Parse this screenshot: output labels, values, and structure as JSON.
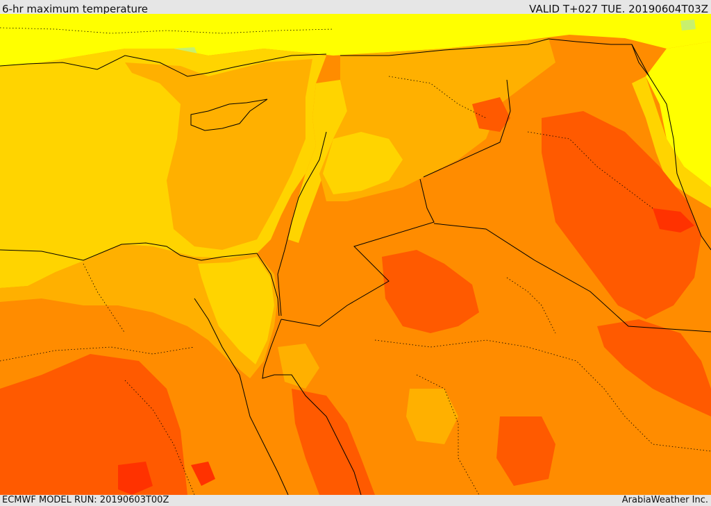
{
  "header": {
    "title": "6-hr maximum temperature",
    "valid": "VALID T+027 TUE. 20190604T03Z"
  },
  "footer": {
    "model_run": "ECMWF MODEL RUN: 20190603T00Z",
    "credit": "ArabiaWeather Inc."
  },
  "colors": {
    "pale_green": "#c8f06e",
    "yellow": "#ffff00",
    "yellow_orange": "#ffd400",
    "amber": "#ffb000",
    "orange": "#ff8c00",
    "dark_orange": "#ff5a00",
    "red_orange": "#ff3200",
    "border": "#000000"
  }
}
